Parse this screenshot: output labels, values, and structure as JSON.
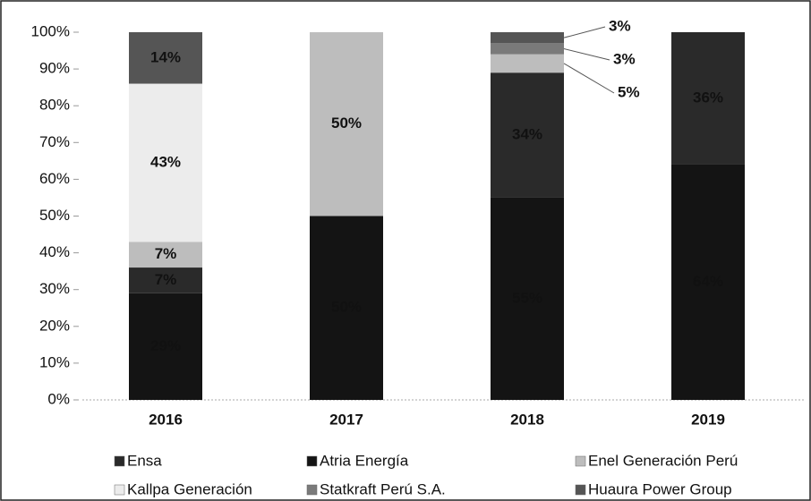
{
  "chart_data": {
    "type": "bar",
    "stacked": true,
    "categories": [
      "2016",
      "2017",
      "2018",
      "2019"
    ],
    "series": [
      {
        "name": "Atria Energía",
        "color": "#141414",
        "values": [
          29,
          50,
          55,
          64
        ],
        "value_labels": [
          "29%",
          "50%",
          "55%",
          "64%"
        ]
      },
      {
        "name": "Ensa",
        "color": "#2a2a2a",
        "values": [
          7,
          0,
          34,
          36
        ],
        "value_labels": [
          "7%",
          null,
          "34%",
          "36%"
        ]
      },
      {
        "name": "Enel Generación Perú",
        "color": "#bdbdbd",
        "values": [
          7,
          50,
          5,
          0
        ],
        "value_labels": [
          "7%",
          "50%",
          "5%",
          null
        ]
      },
      {
        "name": "Kallpa Generación",
        "color": "#ececec",
        "values": [
          43,
          0,
          0,
          0
        ],
        "value_labels": [
          "43%",
          null,
          null,
          null
        ]
      },
      {
        "name": "Statkraft Perú S.A.",
        "color": "#7a7a7a",
        "values": [
          0,
          0,
          3,
          0
        ],
        "value_labels": [
          null,
          null,
          "3%",
          null
        ]
      },
      {
        "name": "Huaura Power Group",
        "color": "#555555",
        "values": [
          14,
          0,
          3,
          0
        ],
        "value_labels": [
          "14%",
          null,
          "3%",
          null
        ]
      }
    ],
    "ylim": [
      0,
      100
    ],
    "yticks": [
      {
        "value": 0,
        "label": "0%"
      },
      {
        "value": 10,
        "label": "10%"
      },
      {
        "value": 20,
        "label": "20%"
      },
      {
        "value": 30,
        "label": "30%"
      },
      {
        "value": 40,
        "label": "40%"
      },
      {
        "value": 50,
        "label": "50%"
      },
      {
        "value": 60,
        "label": "60%"
      },
      {
        "value": 70,
        "label": "70%"
      },
      {
        "value": 80,
        "label": "80%"
      },
      {
        "value": 90,
        "label": "90%"
      },
      {
        "value": 100,
        "label": "100%"
      }
    ],
    "legend": "bottom"
  }
}
